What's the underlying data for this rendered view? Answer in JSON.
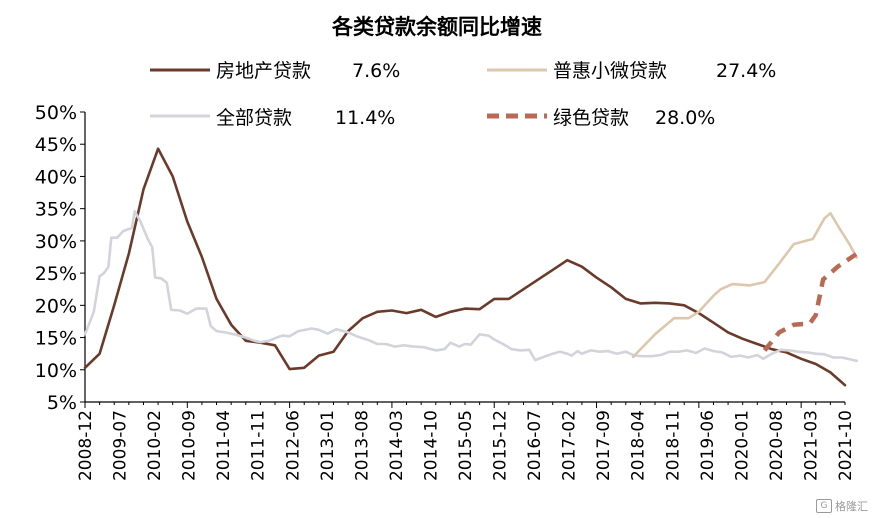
{
  "chart_data": {
    "type": "line",
    "title": "各类贷款余额同比增速",
    "xlabel": "",
    "ylabel": "",
    "ylim": [
      5,
      50
    ],
    "yticks": [
      "5%",
      "10%",
      "15%",
      "20%",
      "25%",
      "30%",
      "35%",
      "40%",
      "45%",
      "50%"
    ],
    "categories": [
      "2008-12",
      "2009-07",
      "2010-02",
      "2010-09",
      "2011-04",
      "2011-11",
      "2012-06",
      "2013-01",
      "2013-08",
      "2014-03",
      "2014-10",
      "2015-05",
      "2015-12",
      "2016-07",
      "2017-02",
      "2017-09",
      "2018-04",
      "2018-11",
      "2019-06",
      "2020-01",
      "2020-08",
      "2021-03",
      "2021-10"
    ],
    "legend": [
      {
        "name": "房地产贷款",
        "value": "7.6%",
        "color": "#6b3a2a",
        "dash": "solid"
      },
      {
        "name": "普惠小微贷款",
        "value": "27.4%",
        "color": "#ddc7ad",
        "dash": "solid"
      },
      {
        "name": "全部贷款",
        "value": "11.4%",
        "color": "#d3d3dc",
        "dash": "solid"
      },
      {
        "name": "绿色贷款",
        "value": "28.0%",
        "color": "#b86a55",
        "dash": "dashed"
      }
    ],
    "series": [
      {
        "name": "房地产贷款",
        "color": "#6b3a2a",
        "points": [
          [
            0,
            10.3
          ],
          [
            1,
            12.5
          ],
          [
            2,
            20
          ],
          [
            3,
            28
          ],
          [
            4,
            38
          ],
          [
            5,
            44.3
          ],
          [
            6,
            40
          ],
          [
            7,
            33
          ],
          [
            8,
            27.5
          ],
          [
            9,
            21
          ],
          [
            10,
            17
          ],
          [
            11,
            14.5
          ],
          [
            12,
            14.2
          ],
          [
            13,
            13.8
          ],
          [
            14,
            10.1
          ],
          [
            15,
            10.3
          ],
          [
            16,
            12.2
          ],
          [
            17,
            12.8
          ],
          [
            18,
            16
          ],
          [
            19,
            18
          ],
          [
            20,
            19
          ],
          [
            21,
            19.2
          ],
          [
            22,
            18.8
          ],
          [
            23,
            19.3
          ],
          [
            24,
            18.2
          ],
          [
            25,
            19
          ],
          [
            26,
            19.5
          ],
          [
            27,
            19.4
          ],
          [
            28,
            21
          ],
          [
            29,
            21
          ],
          [
            30,
            22.5
          ],
          [
            31,
            24
          ],
          [
            32,
            25.5
          ],
          [
            33,
            27
          ],
          [
            34,
            26
          ],
          [
            35,
            24.3
          ],
          [
            36,
            22.8
          ],
          [
            37,
            21
          ],
          [
            38,
            20.3
          ],
          [
            39,
            20.4
          ],
          [
            40,
            20.3
          ],
          [
            41,
            20
          ],
          [
            42,
            18.8
          ],
          [
            43,
            17.3
          ],
          [
            44,
            15.8
          ],
          [
            45,
            14.8
          ],
          [
            46,
            14
          ],
          [
            47,
            13.2
          ],
          [
            48,
            12.7
          ],
          [
            49,
            11.7
          ],
          [
            50,
            10.9
          ],
          [
            51,
            9.6
          ],
          [
            52,
            7.6
          ]
        ]
      },
      {
        "name": "全部贷款",
        "color": "#d3d3dc",
        "points": [
          [
            0,
            15.5
          ],
          [
            0.6,
            19
          ],
          [
            1,
            24.5
          ],
          [
            1.3,
            25
          ],
          [
            1.6,
            26
          ],
          [
            1.8,
            30.5
          ],
          [
            2.2,
            30.5
          ],
          [
            2.6,
            31.5
          ],
          [
            3.2,
            32
          ],
          [
            3.4,
            34.6
          ],
          [
            3.8,
            33
          ],
          [
            4.3,
            30.3
          ],
          [
            4.6,
            29
          ],
          [
            4.8,
            24.3
          ],
          [
            5.2,
            24.2
          ],
          [
            5.6,
            23.5
          ],
          [
            5.9,
            19.3
          ],
          [
            6.5,
            19.2
          ],
          [
            7,
            18.7
          ],
          [
            7.6,
            19.5
          ],
          [
            8.3,
            19.5
          ],
          [
            8.6,
            16.8
          ],
          [
            9,
            16
          ],
          [
            9.6,
            15.8
          ],
          [
            10.2,
            15.5
          ],
          [
            11,
            15
          ],
          [
            11.6,
            14.5
          ],
          [
            12,
            14.3
          ],
          [
            12.6,
            14.5
          ],
          [
            13,
            14.9
          ],
          [
            13.5,
            15.3
          ],
          [
            14,
            15.2
          ],
          [
            14.6,
            16
          ],
          [
            15.5,
            16.4
          ],
          [
            16,
            16.2
          ],
          [
            16.6,
            15.6
          ],
          [
            17.2,
            16.3
          ],
          [
            18,
            15.8
          ],
          [
            18.6,
            15.2
          ],
          [
            19.4,
            14.6
          ],
          [
            20,
            14
          ],
          [
            20.6,
            14
          ],
          [
            21.2,
            13.6
          ],
          [
            21.8,
            13.8
          ],
          [
            22.5,
            13.6
          ],
          [
            23.2,
            13.5
          ],
          [
            24,
            13
          ],
          [
            24.6,
            13.2
          ],
          [
            25,
            14.2
          ],
          [
            25.6,
            13.6
          ],
          [
            26,
            14
          ],
          [
            26.4,
            13.9
          ],
          [
            27,
            15.5
          ],
          [
            27.6,
            15.3
          ],
          [
            28,
            14.7
          ],
          [
            28.6,
            14
          ],
          [
            29.2,
            13.2
          ],
          [
            29.8,
            13
          ],
          [
            30.4,
            13.1
          ],
          [
            30.8,
            11.5
          ],
          [
            31.4,
            12
          ],
          [
            32,
            12.5
          ],
          [
            32.5,
            12.8
          ],
          [
            33,
            12.5
          ],
          [
            33.3,
            12.2
          ],
          [
            33.7,
            12.9
          ],
          [
            34,
            12.5
          ],
          [
            34.6,
            13
          ],
          [
            35.2,
            12.8
          ],
          [
            35.8,
            12.9
          ],
          [
            36.4,
            12.5
          ],
          [
            37,
            12.8
          ],
          [
            37.6,
            12.2
          ],
          [
            38.2,
            12.1
          ],
          [
            38.8,
            12.1
          ],
          [
            39.4,
            12.3
          ],
          [
            40,
            12.8
          ],
          [
            40.6,
            12.8
          ],
          [
            41.2,
            13
          ],
          [
            41.8,
            12.6
          ],
          [
            42.4,
            13.3
          ],
          [
            43,
            12.9
          ],
          [
            43.6,
            12.7
          ],
          [
            44.2,
            12
          ],
          [
            44.8,
            12.2
          ],
          [
            45.4,
            11.9
          ],
          [
            46,
            12.3
          ],
          [
            46.4,
            11.7
          ],
          [
            47,
            12.5
          ],
          [
            47.6,
            13.1
          ],
          [
            48.2,
            13
          ],
          [
            48.8,
            12.8
          ],
          [
            49.4,
            12.7
          ],
          [
            50,
            12.5
          ],
          [
            50.6,
            12.4
          ],
          [
            51.2,
            11.9
          ],
          [
            51.8,
            11.9
          ],
          [
            52.4,
            11.6
          ],
          [
            52.8,
            11.4
          ]
        ]
      },
      {
        "name": "普惠小微贷款",
        "color": "#ddc7ad",
        "points": [
          [
            37.5,
            12
          ],
          [
            39,
            15.5
          ],
          [
            40.3,
            18
          ],
          [
            41.3,
            18
          ],
          [
            42,
            19
          ],
          [
            43,
            21.5
          ],
          [
            43.5,
            22.5
          ],
          [
            44.3,
            23.3
          ],
          [
            45.5,
            23.1
          ],
          [
            46.5,
            23.6
          ],
          [
            47.5,
            26.5
          ],
          [
            48.5,
            29.5
          ],
          [
            49.3,
            30
          ],
          [
            49.8,
            30.3
          ],
          [
            50.6,
            33.5
          ],
          [
            51,
            34.3
          ],
          [
            51.6,
            32
          ],
          [
            52.3,
            29.5
          ],
          [
            52.8,
            27.4
          ]
        ]
      },
      {
        "name": "绿色贷款",
        "color": "#b86a55",
        "dash": "dashed",
        "points": [
          [
            46.5,
            13
          ],
          [
            47.5,
            15.8
          ],
          [
            48.5,
            17
          ],
          [
            49.6,
            17.2
          ],
          [
            50,
            18.5
          ],
          [
            50.5,
            24
          ],
          [
            51.5,
            26
          ],
          [
            52.8,
            28
          ]
        ]
      }
    ]
  },
  "watermark": "格隆汇"
}
